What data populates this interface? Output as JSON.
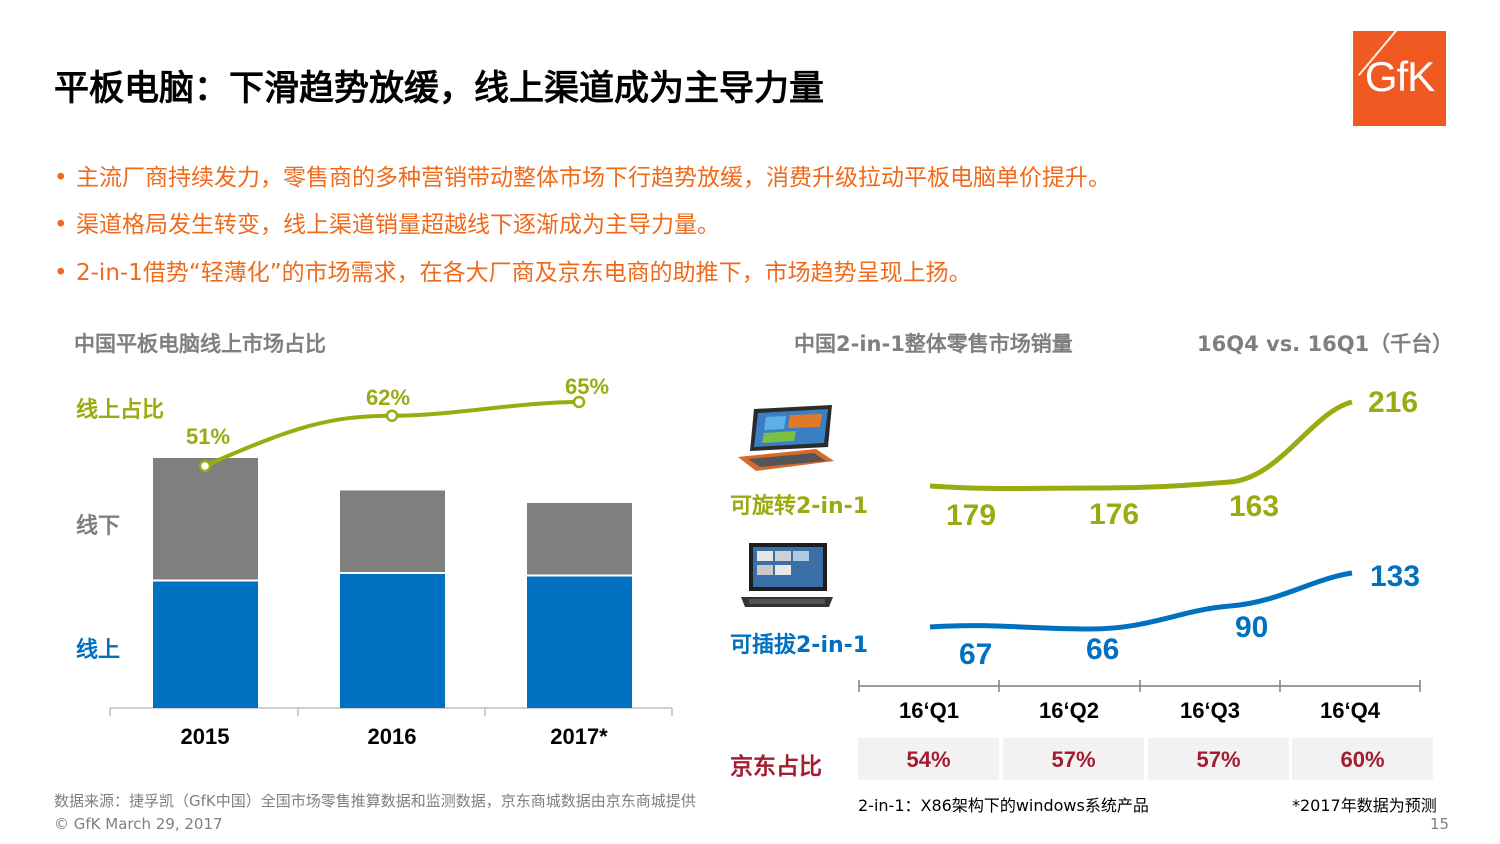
{
  "title": "平板电脑：下滑趋势放缓，线上渠道成为主导力量",
  "logo": "GfK",
  "bullets": [
    "主流厂商持续发力，零售商的多种营销带动整体市场下行趋势放缓，消费升级拉动平板电脑单价提升。",
    "渠道格局发生转变，线上渠道销量超越线下逐渐成为主导力量。",
    "2-in-1借势“轻薄化”的市场需求，在各大厂商及京东电商的助推下，市场趋势呈现上扬。"
  ],
  "colors": {
    "accent": "#f06a1a",
    "online": "#0070c0",
    "offline": "#7f7f7f",
    "share": "#9aab12",
    "jd": "#a51c30"
  },
  "chart_data": [
    {
      "type": "bar",
      "title": "中国平板电脑线上市场占比",
      "stacked": true,
      "categories": [
        "2015",
        "2016",
        "2017*"
      ],
      "series": [
        {
          "name": "线上",
          "values": [
            51,
            54,
            53
          ]
        },
        {
          "name": "线下",
          "values": [
            49,
            33,
            29
          ]
        }
      ],
      "line_series": {
        "name": "线上占比",
        "values": [
          51,
          62,
          65
        ],
        "labels": [
          "51%",
          "62%",
          "65%"
        ]
      }
    },
    {
      "type": "line",
      "title": "中国2-in-1整体零售市场销量",
      "subtitle": "16Q4 vs. 16Q1（千台）",
      "categories": [
        "16‘Q1",
        "16‘Q2",
        "16‘Q3",
        "16‘Q4"
      ],
      "series": [
        {
          "name": "可旋转2-in-1",
          "values": [
            179,
            176,
            163,
            216
          ]
        },
        {
          "name": "可插拔2-in-1",
          "values": [
            67,
            66,
            90,
            133
          ]
        }
      ],
      "table": {
        "label": "京东占比",
        "values": [
          "54%",
          "57%",
          "57%",
          "60%"
        ]
      }
    }
  ],
  "labels": {
    "offline": "线下",
    "online": "线上",
    "share": "线上占比"
  },
  "footnotes": {
    "source": "数据来源：捷孚凯（GfK中国）全国市场零售推算数据和监测数据，京东商城数据由京东商城提供",
    "def": "2-in-1：X86架构下的windows系统产品",
    "forecast": "*2017年数据为预测",
    "copyright": "© GfK March 29, 2017",
    "page": "15"
  }
}
